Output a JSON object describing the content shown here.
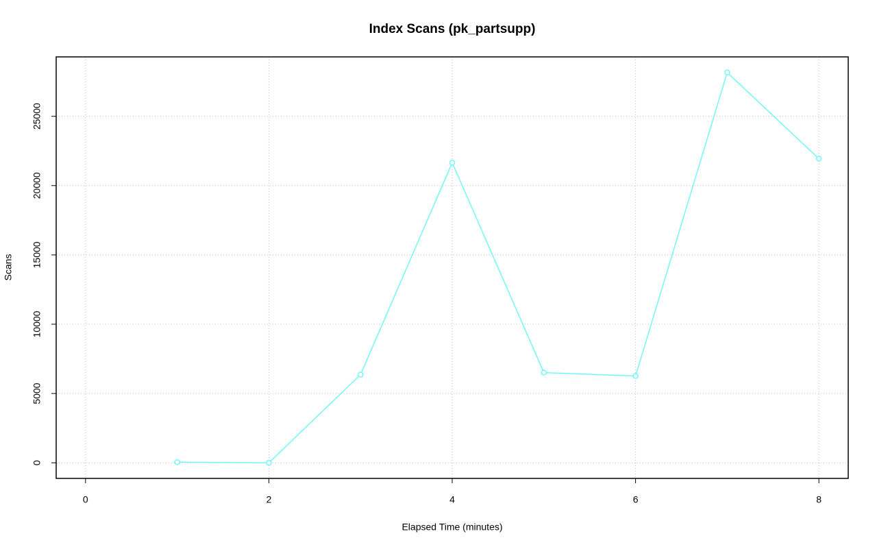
{
  "chart_data": {
    "type": "line",
    "title": "Index Scans (pk_partsupp)",
    "x_label": "Elapsed Time (minutes)",
    "y_label": "Scans",
    "x": [
      1,
      2,
      3,
      4,
      5,
      6,
      7,
      8
    ],
    "series": [
      {
        "name": "pk_partsupp",
        "color": "#70f7f7",
        "values": [
          50,
          0,
          6360,
          21650,
          6510,
          6260,
          28160,
          21940
        ]
      }
    ],
    "xlim": [
      -0.32,
      8.32
    ],
    "xticks": [
      0,
      2,
      4,
      6,
      8
    ],
    "ylim": [
      -1126,
      29286
    ],
    "yticks": [
      0,
      5000,
      10000,
      15000,
      20000,
      25000
    ],
    "grid": true
  }
}
